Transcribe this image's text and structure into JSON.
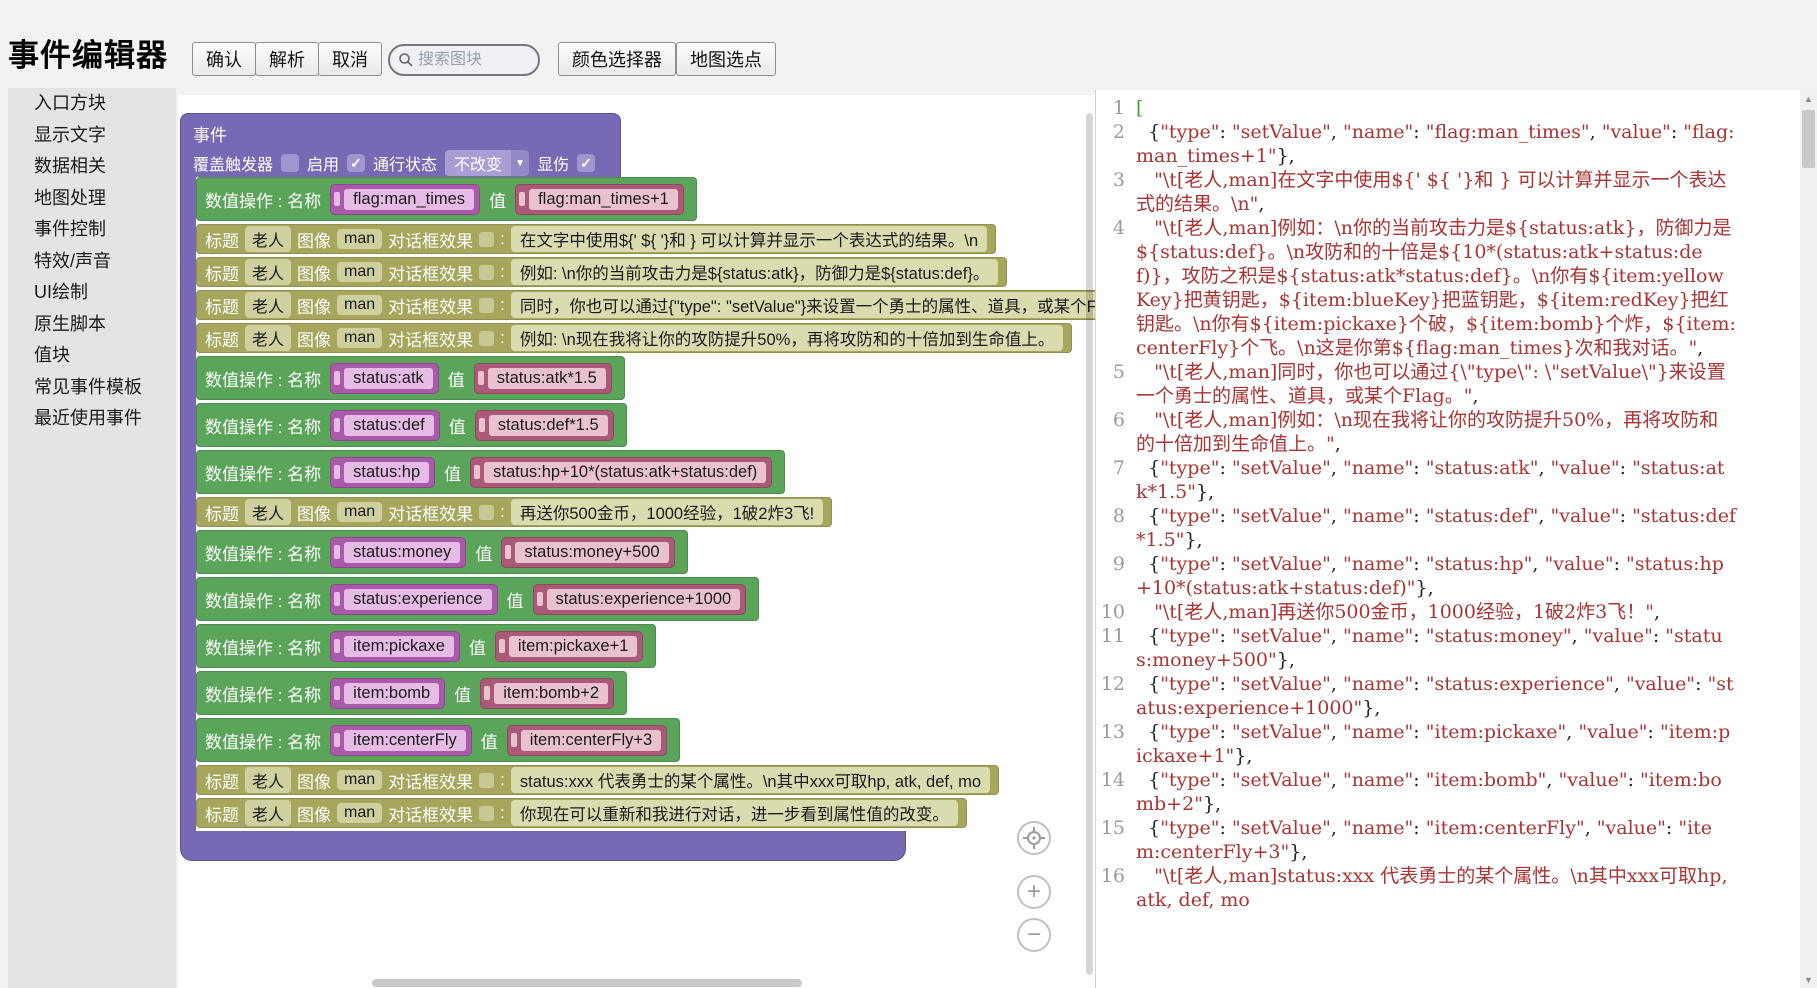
{
  "toolbar": {
    "title": "事件编辑器",
    "confirm": "确认",
    "parse": "解析",
    "cancel": "取消",
    "search_placeholder": "搜索图块",
    "color_picker": "颜色选择器",
    "map_point": "地图选点"
  },
  "sidebar": {
    "items": [
      "入口方块",
      "显示文字",
      "数据相关",
      "地图处理",
      "事件控制",
      "特效/声音",
      "UI绘制",
      "原生脚本",
      "值块",
      "常见事件模板",
      "最近使用事件"
    ]
  },
  "workspace": {
    "event_block": {
      "title": "事件",
      "overlay_trigger_label": "覆盖触发器",
      "enable_label": "启用",
      "pass_state_label": "通行状态",
      "pass_state_value": "不改变",
      "display_damage_label": "显伤",
      "checks": {
        "overlay_trigger": false,
        "enable": true,
        "display_damage": true
      }
    },
    "labels": {
      "set_name": "数值操作 : 名称",
      "set_value": "值",
      "say_title": "标题",
      "say_image": "图像",
      "say_effect": "对话框效果",
      "say_colon": ":"
    },
    "blocks": [
      {
        "kind": "set",
        "name": "flag:man_times",
        "value": "flag:man_times+1"
      },
      {
        "kind": "say",
        "speaker": "老人",
        "image": "man",
        "text": "在文字中使用${' ${ '}和 } 可以计算并显示一个表达式的结果。\\n"
      },
      {
        "kind": "say",
        "speaker": "老人",
        "image": "man",
        "text": "例如: \\n你的当前攻击力是${status:atk}，防御力是${status:def}。"
      },
      {
        "kind": "say",
        "speaker": "老人",
        "image": "man",
        "text": "同时，你也可以通过{\"type\": \"setValue\"}来设置一个勇士的属性、道具，或某个Flag。"
      },
      {
        "kind": "say",
        "speaker": "老人",
        "image": "man",
        "text": "例如: \\n现在我将让你的攻防提升50%，再将攻防和的十倍加到生命值上。"
      },
      {
        "kind": "set",
        "name": "status:atk",
        "value": "status:atk*1.5"
      },
      {
        "kind": "set",
        "name": "status:def",
        "value": "status:def*1.5"
      },
      {
        "kind": "set",
        "name": "status:hp",
        "value": "status:hp+10*(status:atk+status:def)"
      },
      {
        "kind": "say",
        "speaker": "老人",
        "image": "man",
        "text": "再送你500金币，1000经验，1破2炸3飞!"
      },
      {
        "kind": "set",
        "name": "status:money",
        "value": "status:money+500"
      },
      {
        "kind": "set",
        "name": "status:experience",
        "value": "status:experience+1000"
      },
      {
        "kind": "set",
        "name": "item:pickaxe",
        "value": "item:pickaxe+1"
      },
      {
        "kind": "set",
        "name": "item:bomb",
        "value": "item:bomb+2"
      },
      {
        "kind": "set",
        "name": "item:centerFly",
        "value": "item:centerFly+3"
      },
      {
        "kind": "say",
        "speaker": "老人",
        "image": "man",
        "text": "status:xxx 代表勇士的某个属性。\\n其中xxx可取hp, atk, def, mo"
      },
      {
        "kind": "say",
        "speaker": "老人",
        "image": "man",
        "text": "你现在可以重新和我进行对话，进一步看到属性值的改变。"
      }
    ]
  },
  "code_panel": {
    "lines": [
      "[",
      "  {\"type\": \"setValue\", \"name\": \"flag:man_times\", \"value\": \"flag:man_times+1\"},",
      "   \"\\t[老人,man]在文字中使用${' ${ '}和 } 可以计算并显示一个表达式的结果。\\n\",",
      "   \"\\t[老人,man]例如：\\n你的当前攻击力是${status:atk}，防御力是${status:def}。\\n攻防和的十倍是${10*(status:atk+status:def)}，攻防之积是${status:atk*status:def}。\\n你有${item:yellowKey}把黄钥匙，${item:blueKey}把蓝钥匙，${item:redKey}把红钥匙。\\n你有${item:pickaxe}个破，${item:bomb}个炸，${item:centerFly}个飞。\\n这是你第${flag:man_times}次和我对话。\",",
      "   \"\\t[老人,man]同时，你也可以通过{\\\"type\\\": \\\"setValue\\\"}来设置一个勇士的属性、道具，或某个Flag。\",",
      "   \"\\t[老人,man]例如：\\n现在我将让你的攻防提升50%，再将攻防和的十倍加到生命值上。\",",
      "  {\"type\": \"setValue\", \"name\": \"status:atk\", \"value\": \"status:atk*1.5\"},",
      "  {\"type\": \"setValue\", \"name\": \"status:def\", \"value\": \"status:def*1.5\"},",
      "  {\"type\": \"setValue\", \"name\": \"status:hp\", \"value\": \"status:hp+10*(status:atk+status:def)\"},",
      "   \"\\t[老人,man]再送你500金币，1000经验，1破2炸3飞！\",",
      "  {\"type\": \"setValue\", \"name\": \"status:money\", \"value\": \"status:money+500\"},",
      "  {\"type\": \"setValue\", \"name\": \"status:experience\", \"value\": \"status:experience+1000\"},",
      "  {\"type\": \"setValue\", \"name\": \"item:pickaxe\", \"value\": \"item:pickaxe+1\"},",
      "  {\"type\": \"setValue\", \"name\": \"item:bomb\", \"value\": \"item:bomb+2\"},",
      "  {\"type\": \"setValue\", \"name\": \"item:centerFly\", \"value\": \"item:centerFly+3\"},",
      "   \"\\t[老人,man]status:xxx 代表勇士的某个属性。\\n其中xxx可取hp, atk, def, mo"
    ]
  },
  "colors": {
    "event_purple": "#7869b4",
    "set_green": "#5ba55b",
    "say_olive": "#a6a65c",
    "name_magenta": "#a95aa9",
    "value_rose": "#aa5a78",
    "code_string": "#a83434",
    "code_bracket": "#3aa43a"
  }
}
